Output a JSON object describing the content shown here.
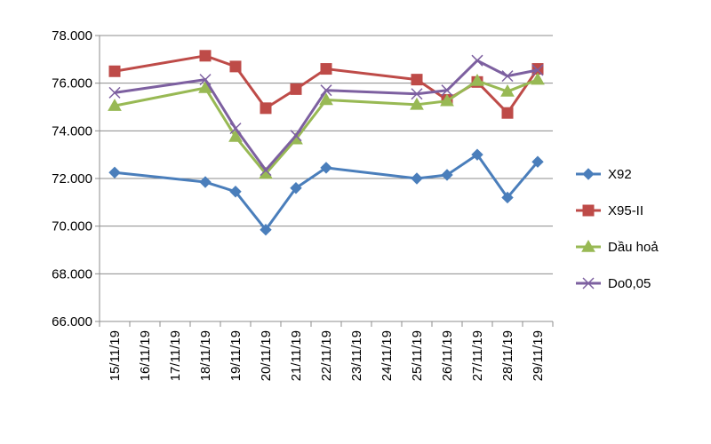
{
  "chart_data": {
    "type": "line",
    "categories": [
      "15/11/19",
      "16/11/19",
      "17/11/19",
      "18/11/19",
      "19/11/19",
      "20/11/19",
      "21/11/19",
      "22/11/19",
      "23/11/19",
      "24/11/19",
      "25/11/19",
      "26/11/19",
      "27/11/19",
      "28/11/19",
      "29/11/19"
    ],
    "y_tick_labels": [
      "66.000",
      "68.000",
      "70.000",
      "72.000",
      "74.000",
      "76.000",
      "78.000"
    ],
    "y_ticks": [
      66000,
      68000,
      70000,
      72000,
      74000,
      76000,
      78000
    ],
    "ylim": [
      66000,
      78000
    ],
    "grid": true,
    "legend_position": "right",
    "series": [
      {
        "name": "X92",
        "color": "#4a7ebb",
        "marker": "diamond",
        "values": [
          72250,
          null,
          null,
          71850,
          71450,
          69850,
          71600,
          72450,
          null,
          null,
          72000,
          72150,
          73000,
          71200,
          72700
        ]
      },
      {
        "name": "X95-II",
        "color": "#be4b48",
        "marker": "square",
        "values": [
          76500,
          null,
          null,
          77150,
          76700,
          74950,
          75750,
          76600,
          null,
          null,
          76150,
          75300,
          76050,
          74750,
          76600
        ]
      },
      {
        "name": "Dầu hoả",
        "color": "#98b954",
        "marker": "triangle",
        "values": [
          75050,
          null,
          null,
          75800,
          73750,
          72200,
          73650,
          75300,
          null,
          null,
          75100,
          75250,
          76100,
          75650,
          76150
        ]
      },
      {
        "name": "Do0,05",
        "color": "#7d60a0",
        "marker": "x",
        "values": [
          75600,
          null,
          null,
          76150,
          74100,
          72350,
          73800,
          75700,
          null,
          null,
          75550,
          75700,
          76950,
          76300,
          76550
        ]
      }
    ]
  }
}
